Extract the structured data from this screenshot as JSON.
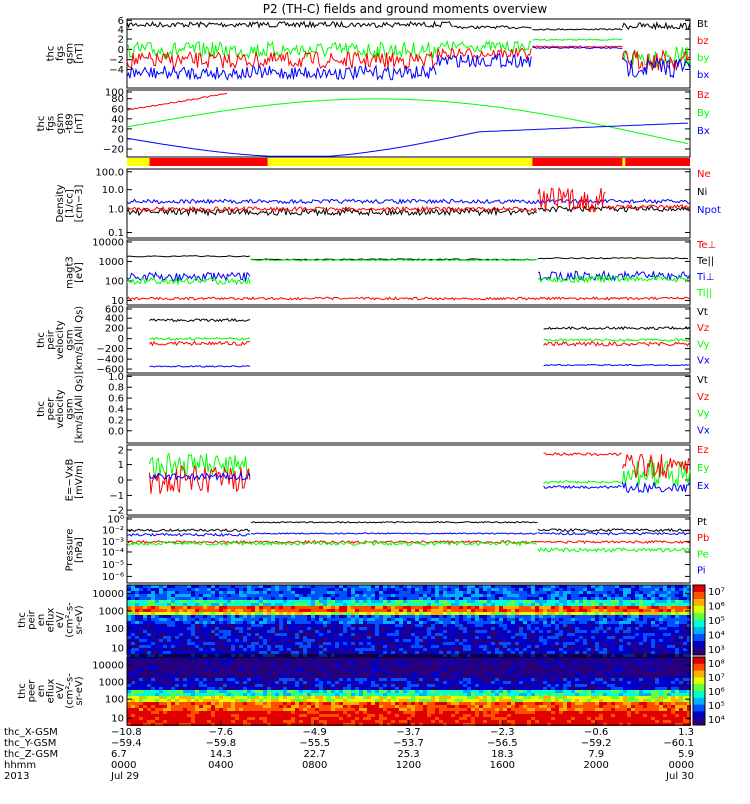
{
  "title": "P2 (TH-C) fields and ground moments overview",
  "colors": {
    "black": "#000000",
    "red": "#ff0000",
    "green": "#00ff00",
    "blue": "#0000ff",
    "yellow": "#ffff00"
  },
  "chart_data": {
    "type": "line",
    "panels": [
      {
        "id": "fgs",
        "ylabel": [
          "thc",
          "fgs",
          "gsm",
          "[nT]"
        ],
        "yticks": [
          "6",
          "4",
          "2",
          "0",
          "−2",
          "−4"
        ],
        "legend": [
          {
            "label": "Bt",
            "color": "black"
          },
          {
            "label": "bz",
            "color": "red"
          },
          {
            "label": "by",
            "color": "green"
          },
          {
            "label": "bx",
            "color": "blue"
          }
        ]
      },
      {
        "id": "fgs_tsy",
        "ylabel": [
          "thc",
          "fgs",
          "gsm",
          "-t89",
          "[nT]"
        ],
        "yticks": [
          "100",
          "80",
          "60",
          "40",
          "20",
          "0",
          "−20"
        ],
        "legend": [
          {
            "label": "Bz",
            "color": "red"
          },
          {
            "label": "By",
            "color": "green"
          },
          {
            "label": "Bx",
            "color": "blue"
          }
        ]
      },
      {
        "id": "density",
        "ylabel": [
          "Density",
          "[1/cc]",
          "[cm−3]"
        ],
        "yticks": [
          "100.0",
          "10.0",
          "1.0",
          "0.1"
        ],
        "legend": [
          {
            "label": "Ne",
            "color": "red"
          },
          {
            "label": "Ni",
            "color": "black"
          },
          {
            "label": "Npot",
            "color": "blue"
          }
        ]
      },
      {
        "id": "temp",
        "ylabel": [
          "magt3",
          "[eV]"
        ],
        "yticks": [
          "10000",
          "1000",
          "100",
          "10"
        ],
        "legend": [
          {
            "label": "Te⊥",
            "color": "red"
          },
          {
            "label": "Te||",
            "color": "black"
          },
          {
            "label": "Ti⊥",
            "color": "blue"
          },
          {
            "label": "Ti||",
            "color": "green"
          }
        ]
      },
      {
        "id": "peir_vel",
        "ylabel": [
          "thc",
          "peir",
          "velocity",
          "gsm",
          "[km/s](All Qs)"
        ],
        "yticks": [
          "600",
          "400",
          "200",
          "0",
          "−200",
          "−400",
          "−600"
        ],
        "legend": [
          {
            "label": "Vt",
            "color": "black"
          },
          {
            "label": "Vz",
            "color": "red"
          },
          {
            "label": "Vy",
            "color": "green"
          },
          {
            "label": "Vx",
            "color": "blue"
          }
        ]
      },
      {
        "id": "peer_vel",
        "ylabel": [
          "thc",
          "peer",
          "velocity",
          "gsm",
          "[km/s](All Qs)"
        ],
        "yticks": [
          "1.0",
          "0.8",
          "0.6",
          "0.4",
          "0.2",
          "0.0"
        ],
        "legend": [
          {
            "label": "Vt",
            "color": "black"
          },
          {
            "label": "Vz",
            "color": "red"
          },
          {
            "label": "Vy",
            "color": "green"
          },
          {
            "label": "Vx",
            "color": "blue"
          }
        ]
      },
      {
        "id": "efield",
        "ylabel": [
          "E=−VxB",
          "[mV/m]"
        ],
        "yticks": [
          "2",
          "1",
          "0",
          "−1",
          "−2"
        ],
        "legend": [
          {
            "label": "Ez",
            "color": "red"
          },
          {
            "label": "Ey",
            "color": "green"
          },
          {
            "label": "Ex",
            "color": "blue"
          }
        ]
      },
      {
        "id": "pressure",
        "ylabel": [
          "Pressure",
          "[nPa]"
        ],
        "yticks": [
          "10⁰",
          "10⁻²",
          "10⁻³",
          "10⁻⁴",
          "10⁻⁵",
          "10⁻⁶"
        ],
        "legend": [
          {
            "label": "Pt",
            "color": "black"
          },
          {
            "label": "Pb",
            "color": "red"
          },
          {
            "label": "Pe",
            "color": "green"
          },
          {
            "label": "Pi",
            "color": "blue"
          }
        ]
      },
      {
        "id": "peir_en",
        "ylabel": [
          "thc",
          "peir",
          "en",
          "eflux",
          "eV/",
          "(cm²-s-",
          "sr-eV)"
        ],
        "yticks": [
          "10000",
          "1000",
          "100",
          "10"
        ],
        "colorbar": [
          "10⁷",
          "10⁶",
          "10⁵",
          "10⁴",
          "10³"
        ]
      },
      {
        "id": "peer_en",
        "ylabel": [
          "thc",
          "peer",
          "en",
          "eflux",
          "eV/",
          "(cm²-s-",
          "sr-eV)"
        ],
        "yticks": [
          "10000",
          "1000",
          "100",
          "10"
        ],
        "colorbar": [
          "10⁸",
          "10⁷",
          "10⁶",
          "10⁵",
          "10⁴"
        ]
      }
    ],
    "state_bar": [
      "yellow",
      "red",
      "yellow",
      "red",
      "yellow",
      "red"
    ],
    "xaxis": {
      "row_labels": [
        "thc_X-GSM",
        "thc_Y-GSM",
        "thc_Z-GSM",
        "hhmm",
        "2013"
      ],
      "ticks": [
        {
          "t": "0000",
          "x": "−10.8",
          "y": "−59.4",
          "z": "6.7",
          "date": "Jul 29"
        },
        {
          "t": "0400",
          "x": "−7.6",
          "y": "−59.8",
          "z": "14.3",
          "date": ""
        },
        {
          "t": "0800",
          "x": "−4.9",
          "y": "−55.5",
          "z": "22.7",
          "date": ""
        },
        {
          "t": "1200",
          "x": "−3.7",
          "y": "−53.7",
          "z": "25.3",
          "date": ""
        },
        {
          "t": "1600",
          "x": "−2.3",
          "y": "−56.5",
          "z": "18.3",
          "date": ""
        },
        {
          "t": "2000",
          "x": "−0.6",
          "y": "−59.2",
          "z": "7.9",
          "date": ""
        },
        {
          "t": "0000",
          "x": "1.3",
          "y": "−60.1",
          "z": "5.9",
          "date": "Jul 30"
        }
      ]
    }
  }
}
